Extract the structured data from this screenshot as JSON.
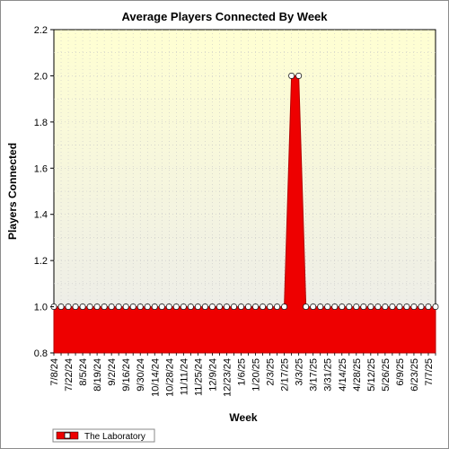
{
  "chart_data": {
    "type": "area",
    "title": "Average Players Connected By Week",
    "xlabel": "Week",
    "ylabel": "Players Connected",
    "ylim": [
      0.8,
      2.2
    ],
    "yticks": [
      "0.8",
      "1.0",
      "1.2",
      "1.4",
      "1.6",
      "1.8",
      "2.0",
      "2.2"
    ],
    "xtick_labels": [
      "7/8/24",
      "7/22/24",
      "8/5/24",
      "8/19/24",
      "9/2/24",
      "9/16/24",
      "9/30/24",
      "10/14/24",
      "10/28/24",
      "11/11/24",
      "11/25/24",
      "12/9/24",
      "12/23/24",
      "1/6/25",
      "1/20/25",
      "2/3/25",
      "2/17/25",
      "3/3/25",
      "3/17/25",
      "3/31/25",
      "4/14/25",
      "4/28/25",
      "5/12/25",
      "5/26/25",
      "6/9/25",
      "6/23/25",
      "7/7/25"
    ],
    "grid": true,
    "legend_position": "bottom-left",
    "background_gradient": [
      "#ffffd2",
      "#ebebeb"
    ],
    "series": [
      {
        "name": "The Laboratory",
        "color": "#ee0000",
        "x": [
          "7/8/24",
          "7/15/24",
          "7/22/24",
          "7/29/24",
          "8/5/24",
          "8/12/24",
          "8/19/24",
          "8/26/24",
          "9/2/24",
          "9/9/24",
          "9/16/24",
          "9/23/24",
          "9/30/24",
          "10/7/24",
          "10/14/24",
          "10/21/24",
          "10/28/24",
          "11/4/24",
          "11/11/24",
          "11/18/24",
          "11/25/24",
          "12/2/24",
          "12/9/24",
          "12/16/24",
          "12/23/24",
          "12/30/24",
          "1/6/25",
          "1/13/25",
          "1/20/25",
          "1/27/25",
          "2/3/25",
          "2/10/25",
          "2/17/25",
          "2/24/25",
          "3/3/25",
          "3/10/25",
          "3/17/25",
          "3/24/25",
          "3/31/25",
          "4/7/25",
          "4/14/25",
          "4/21/25",
          "4/28/25",
          "5/5/25",
          "5/12/25",
          "5/19/25",
          "5/26/25",
          "6/2/25",
          "6/9/25",
          "6/16/25",
          "6/23/25",
          "6/30/25",
          "7/7/25",
          "7/14/25"
        ],
        "values": [
          1,
          1,
          1,
          1,
          1,
          1,
          1,
          1,
          1,
          1,
          1,
          1,
          1,
          1,
          1,
          1,
          1,
          1,
          1,
          1,
          1,
          1,
          1,
          1,
          1,
          1,
          1,
          1,
          1,
          1,
          1,
          1,
          1,
          2,
          2,
          1,
          1,
          1,
          1,
          1,
          1,
          1,
          1,
          1,
          1,
          1,
          1,
          1,
          1,
          1,
          1,
          1,
          1,
          1
        ]
      }
    ]
  }
}
